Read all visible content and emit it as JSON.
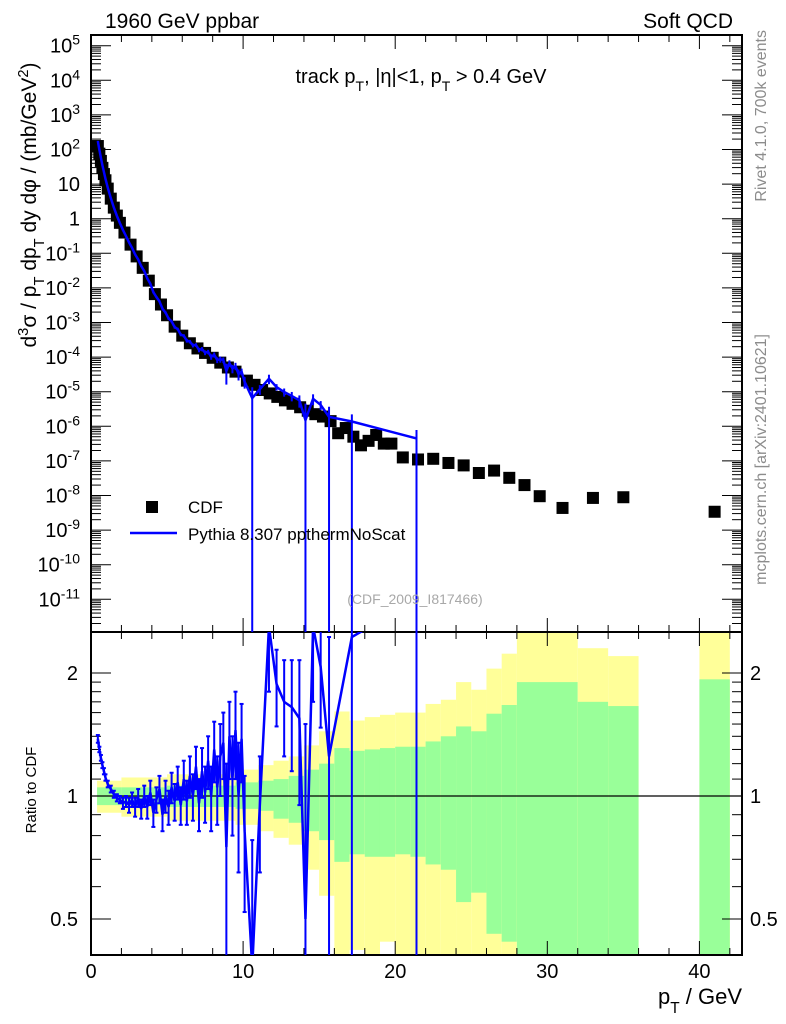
{
  "header": {
    "left": "1960 GeV ppbar",
    "right": "Soft QCD"
  },
  "side_texts": {
    "rivet": "Rivet 4.1.0,  700k events",
    "mcplots": "mcplots.cern.ch [arXiv:2401.10621]"
  },
  "watermark": "(CDF_2009_I817466)",
  "chart_data": {
    "type": "scatter",
    "title": "track p_{T}, |η|<1, p_{T} > 0.4 GeV",
    "xlabel": "p_{T} / GeV",
    "ylabel": "d^{3}σ / p_{T} dp_{T} dy dφ / (mb/GeV^{2})",
    "ratio_ylabel": "Ratio to CDF",
    "xlim": [
      0,
      42.8
    ],
    "ylim": [
      1.1e-12,
      200000.0
    ],
    "yscale": "log",
    "ratio_ylim": [
      0.41,
      2.52
    ],
    "ratio_yscale": "log",
    "legend_position": "lower-left",
    "x_ticks": [
      "0",
      "10",
      "20",
      "30",
      "40"
    ],
    "y_ticks": [
      "10^{5}",
      "10^{4}",
      "10^{3}",
      "10^{2}",
      "10",
      "1",
      "10^{-1}",
      "10^{-2}",
      "10^{-3}",
      "10^{-4}",
      "10^{-5}",
      "10^{-6}",
      "10^{-7}",
      "10^{-8}",
      "10^{-9}",
      "10^{-10}",
      "10^{-11}"
    ],
    "ratio_ticks": [
      "2",
      "1",
      "0.5"
    ],
    "colors": {
      "data": "#000000",
      "mc": "#0000ff",
      "band_outer": "#ffff99",
      "band_inner": "#99ff99"
    },
    "series": [
      {
        "name": "CDF",
        "marker": "square",
        "x": [
          0.45,
          0.55,
          0.65,
          0.75,
          0.85,
          0.95,
          1.1,
          1.3,
          1.5,
          1.7,
          1.9,
          2.2,
          2.6,
          3.0,
          3.4,
          3.8,
          4.2,
          4.6,
          5.0,
          5.5,
          6.0,
          6.5,
          7.0,
          7.5,
          8.0,
          8.5,
          9.0,
          9.5,
          10.25,
          10.75,
          11.25,
          11.75,
          12.25,
          12.75,
          13.25,
          13.75,
          14.25,
          14.75,
          15.25,
          15.75,
          16.25,
          16.75,
          17.25,
          17.75,
          18.25,
          18.75,
          19.25,
          19.75,
          20.5,
          21.5,
          22.5,
          23.5,
          24.5,
          25.5,
          26.5,
          27.5,
          28.5,
          29.5,
          31,
          33,
          35,
          41
        ],
        "y": [
          126.0,
          75.9,
          46.8,
          29.5,
          19.5,
          12.9,
          7.41,
          3.8,
          2.09,
          1.23,
          0.759,
          0.398,
          0.178,
          0.0813,
          0.038,
          0.0162,
          0.00661,
          0.00331,
          0.00162,
          0.000759,
          0.000417,
          0.000251,
          0.000178,
          0.000132,
          9.55e-05,
          6.92e-05,
          5.01e-05,
          3.8e-05,
          2.09e-05,
          1.58e-05,
          1.12e-05,
          8.91e-06,
          7.08e-06,
          5.62e-06,
          4.47e-06,
          3.55e-06,
          2.82e-06,
          2.24e-06,
          1.91e-06,
          1.41e-06,
          6.31e-07,
          8.91e-07,
          5.01e-07,
          2.82e-07,
          3.8e-07,
          5.62e-07,
          3.16e-07,
          3.16e-07,
          1.26e-07,
          1.1e-07,
          1.15e-07,
          8.71e-08,
          7.41e-08,
          4.47e-08,
          5.25e-08,
          3.24e-08,
          2e-08,
          9.55e-09,
          4.37e-09,
          8.51e-09,
          8.91e-09,
          3.39e-09
        ]
      },
      {
        "name": "Pythia 8.307 ppthermNoScat",
        "marker": "line",
        "note_ratio": "values are ratio to CDF; [x, ratio, err_down, err_up]",
        "ratio_points": [
          [
            0.45,
            1.38,
            0.03,
            0.03
          ],
          [
            0.55,
            1.3,
            0.02,
            0.02
          ],
          [
            0.65,
            1.24,
            0.02,
            0.02
          ],
          [
            0.75,
            1.19,
            0.02,
            0.02
          ],
          [
            0.85,
            1.15,
            0.02,
            0.02
          ],
          [
            0.95,
            1.11,
            0.02,
            0.02
          ],
          [
            1.1,
            1.07,
            0.02,
            0.02
          ],
          [
            1.3,
            1.04,
            0.02,
            0.02
          ],
          [
            1.5,
            1.01,
            0.02,
            0.02
          ],
          [
            1.7,
            0.99,
            0.02,
            0.02
          ],
          [
            1.9,
            0.98,
            0.02,
            0.02
          ],
          [
            2.1,
            0.96,
            0.03,
            0.03
          ],
          [
            2.3,
            0.97,
            0.03,
            0.03
          ],
          [
            2.5,
            0.95,
            0.04,
            0.04
          ],
          [
            2.7,
            0.98,
            0.04,
            0.04
          ],
          [
            2.9,
            0.94,
            0.05,
            0.05
          ],
          [
            3.1,
            0.99,
            0.05,
            0.05
          ],
          [
            3.3,
            0.93,
            0.05,
            0.05
          ],
          [
            3.5,
            1.0,
            0.06,
            0.06
          ],
          [
            3.7,
            0.94,
            0.06,
            0.06
          ],
          [
            3.9,
            1.02,
            0.07,
            0.07
          ],
          [
            4.1,
            0.91,
            0.07,
            0.07
          ],
          [
            4.3,
            0.98,
            0.07,
            0.07
          ],
          [
            4.5,
            1.04,
            0.08,
            0.08
          ],
          [
            4.7,
            0.9,
            0.08,
            0.08
          ],
          [
            4.9,
            1.0,
            0.09,
            0.09
          ],
          [
            5.1,
            0.94,
            0.09,
            0.09
          ],
          [
            5.3,
            1.05,
            0.09,
            0.09
          ],
          [
            5.5,
            0.97,
            0.1,
            0.1
          ],
          [
            5.7,
            1.08,
            0.1,
            0.1
          ],
          [
            5.9,
            0.95,
            0.1,
            0.1
          ],
          [
            6.1,
            1.1,
            0.12,
            0.12
          ],
          [
            6.3,
            0.97,
            0.12,
            0.12
          ],
          [
            6.5,
            1.12,
            0.13,
            0.13
          ],
          [
            6.7,
            1.0,
            0.13,
            0.13
          ],
          [
            6.9,
            1.18,
            0.14,
            0.14
          ],
          [
            7.1,
            0.96,
            0.14,
            0.14
          ],
          [
            7.3,
            1.15,
            0.16,
            0.16
          ],
          [
            7.5,
            1.02,
            0.16,
            0.16
          ],
          [
            7.7,
            1.22,
            0.18,
            0.18
          ],
          [
            7.9,
            1.0,
            0.18,
            0.18
          ],
          [
            8.1,
            1.3,
            0.22,
            0.22
          ],
          [
            8.3,
            1.05,
            0.2,
            0.2
          ],
          [
            8.5,
            1.25,
            0.25,
            0.25
          ],
          [
            8.7,
            1.35,
            0.25,
            0.25
          ],
          [
            8.9,
            0.75,
            0.45,
            0.45
          ],
          [
            9.1,
            1.4,
            0.3,
            0.3
          ],
          [
            9.3,
            1.1,
            0.3,
            0.3
          ],
          [
            9.5,
            1.45,
            0.35,
            0.35
          ],
          [
            9.7,
            1.0,
            0.35,
            0.35
          ],
          [
            9.9,
            1.38,
            0.3,
            0.3
          ],
          [
            10.1,
            0.82,
            0.3,
            0.3
          ],
          [
            10.6,
            0.38,
            0.38,
            0.4
          ],
          [
            11.1,
            0.95,
            0.3,
            0.3
          ],
          [
            11.7,
            2.6,
            0.8,
            0.8
          ],
          [
            12.2,
            1.88,
            0.4,
            0.4
          ],
          [
            12.7,
            1.7,
            0.45,
            0.45
          ],
          [
            13.2,
            1.65,
            0.5,
            0.5
          ],
          [
            13.7,
            1.55,
            0.6,
            0.6
          ],
          [
            14.1,
            0.5,
            0.5,
            1.0
          ],
          [
            14.6,
            2.6,
            0.9,
            0.9
          ],
          [
            15.1,
            2.07,
            0.6,
            0.6
          ],
          [
            15.65,
            1.25,
            1.25,
            1.2
          ],
          [
            17.15,
            2.45,
            2.45,
            1.5
          ],
          [
            21.4,
            4.0,
            4.0,
            3.0
          ]
        ]
      }
    ],
    "uncertainty_bands": {
      "columns": [
        "x_lo",
        "x_hi",
        "outer_lo",
        "outer_hi",
        "inner_lo",
        "inner_hi"
      ],
      "bins": [
        [
          0.4,
          2,
          0.91,
          1.09,
          0.95,
          1.05
        ],
        [
          2,
          5,
          0.89,
          1.11,
          0.95,
          1.05
        ],
        [
          5,
          9.5,
          0.87,
          1.13,
          0.94,
          1.06
        ],
        [
          9.5,
          11,
          0.85,
          1.16,
          0.93,
          1.08
        ],
        [
          11,
          12,
          0.82,
          1.19,
          0.92,
          1.09
        ],
        [
          12,
          13,
          0.79,
          1.22,
          0.88,
          1.1
        ],
        [
          13,
          14,
          0.76,
          1.25,
          0.86,
          1.12
        ],
        [
          14,
          15,
          0.66,
          1.33,
          0.82,
          1.16
        ],
        [
          15,
          16,
          0.57,
          1.44,
          0.78,
          1.2
        ],
        [
          16,
          17,
          0.3,
          1.61,
          0.69,
          1.31
        ],
        [
          17,
          18,
          0.42,
          1.53,
          0.72,
          1.29
        ],
        [
          18,
          19,
          0.3,
          1.56,
          0.71,
          1.3
        ],
        [
          19,
          20,
          0.44,
          1.58,
          0.71,
          1.31
        ],
        [
          20,
          21,
          0.3,
          1.6,
          0.72,
          1.32
        ],
        [
          21,
          22,
          0.3,
          1.6,
          0.71,
          1.32
        ],
        [
          22,
          23,
          0.3,
          1.68,
          0.68,
          1.36
        ],
        [
          23,
          24,
          0.3,
          1.72,
          0.66,
          1.4
        ],
        [
          24,
          25,
          0.3,
          1.9,
          0.55,
          1.48
        ],
        [
          25,
          26,
          0.3,
          1.82,
          0.58,
          1.44
        ],
        [
          26,
          27,
          0.3,
          2.05,
          0.46,
          1.59
        ],
        [
          27,
          28,
          0.3,
          2.23,
          0.44,
          1.67
        ],
        [
          28,
          32,
          0.3,
          3.0,
          0.3,
          1.9
        ],
        [
          32,
          34,
          0.3,
          2.3,
          0.3,
          1.7
        ],
        [
          34,
          36,
          0.3,
          2.2,
          0.3,
          1.66
        ],
        [
          40,
          42,
          0.3,
          3.0,
          0.3,
          1.93
        ]
      ]
    }
  }
}
